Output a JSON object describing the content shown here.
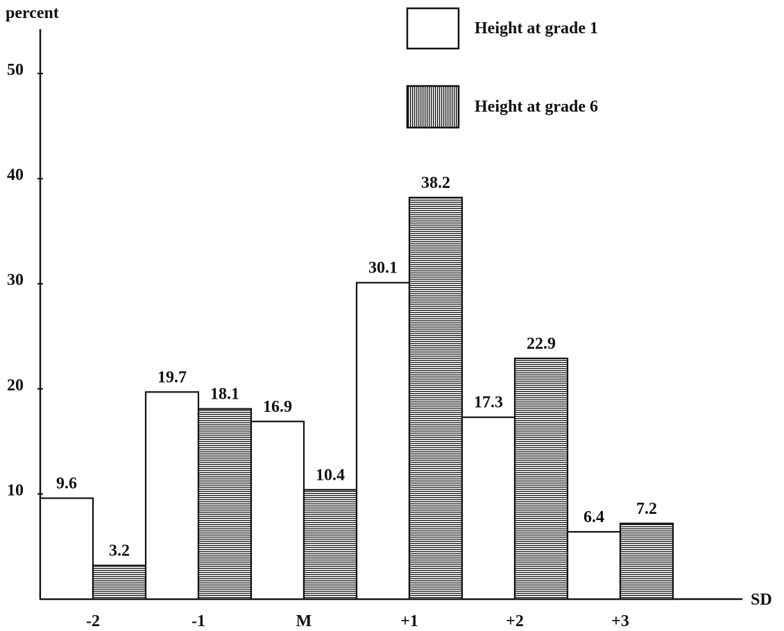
{
  "chart_data": {
    "type": "bar",
    "categories": [
      "-2",
      "-1",
      "M",
      "+1",
      "+2",
      "+3"
    ],
    "series": [
      {
        "name": "Height at grade 1",
        "values": [
          9.6,
          19.7,
          16.9,
          30.1,
          17.3,
          6.4
        ],
        "fill": "plain"
      },
      {
        "name": "Height at grade 6",
        "values": [
          3.2,
          18.1,
          10.4,
          38.2,
          22.9,
          7.2
        ],
        "fill": "horizontal-hatch"
      }
    ],
    "ylabel": "percent",
    "xlabel": "SD",
    "yticks": [
      10,
      20,
      30,
      40,
      50
    ],
    "ylim": [
      0,
      55
    ],
    "grid": false,
    "legend_position": "top-right",
    "colors": {
      "ink": "#111111",
      "background": "#ffffff"
    }
  }
}
